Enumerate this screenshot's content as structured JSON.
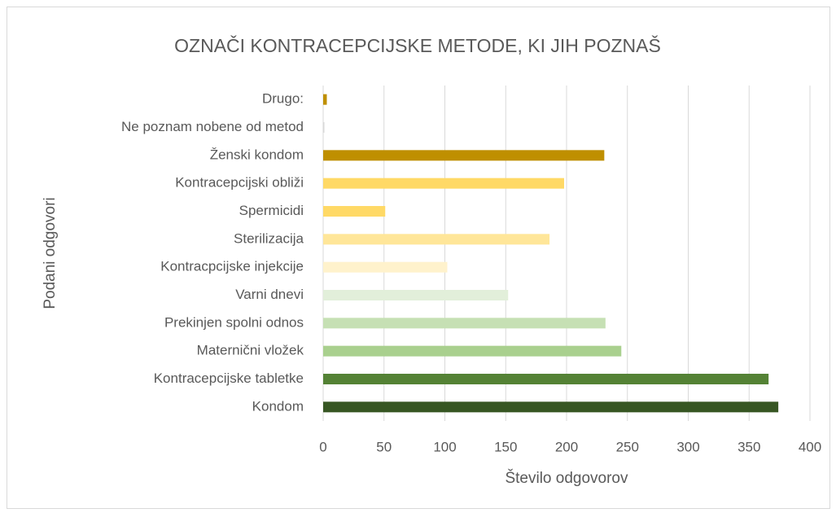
{
  "chart_data": {
    "type": "bar",
    "orientation": "horizontal",
    "title": "OZNAČI KONTRACEPCIJSKE METODE, KI JIH POZNAŠ",
    "xlabel": "Število odgovorov",
    "ylabel": "Podani odgovori",
    "categories": [
      "Drugo:",
      "Ne poznam nobene od metod",
      "Ženski kondom",
      "Kontracepcijski obliži",
      "Spermicidi",
      "Sterilizacija",
      "Kontracpcijske injekcije",
      "Varni dnevi",
      "Prekinjen spolni odnos",
      "Maternični vložek",
      "Kontracepcijske tabletke",
      "Kondom"
    ],
    "values": [
      3,
      1,
      231,
      198,
      51,
      186,
      102,
      152,
      232,
      245,
      366,
      374
    ],
    "colors": [
      "#bf8f00",
      "#d9d9d9",
      "#bf8f00",
      "#ffd966",
      "#ffd966",
      "#ffe699",
      "#fff2cc",
      "#e2efda",
      "#c6e0b4",
      "#a9d08e",
      "#548235",
      "#375623"
    ],
    "xlim": [
      0,
      400
    ],
    "xticks": [
      0,
      50,
      100,
      150,
      200,
      250,
      300,
      350,
      400
    ],
    "grid": true
  }
}
